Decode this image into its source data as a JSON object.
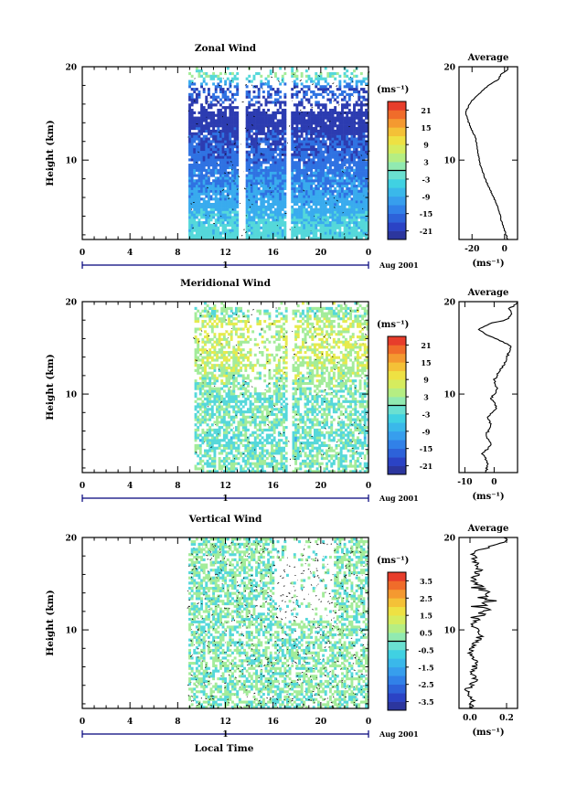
{
  "footer_xlabel": "Local Time",
  "date_label": "Aug 2001",
  "day_label": "1",
  "average_title": "Average",
  "unit_label": "(ms⁻¹)",
  "chart_data": [
    {
      "type": "heatmap",
      "title": "Zonal Wind",
      "ylabel": "Height (km)",
      "ylim": [
        1.5,
        20
      ],
      "yticks": [
        "10",
        "20"
      ],
      "xlim": [
        0,
        24
      ],
      "xticks": [
        "0",
        "4",
        "8",
        "12",
        "16",
        "20",
        "0"
      ],
      "data_x_range": [
        8.9,
        24
      ],
      "colorbar": {
        "unit": "(ms⁻¹)",
        "min": -24,
        "max": 24,
        "ticks": [
          "21",
          "15",
          "9",
          "3",
          "-3",
          "-9",
          "-15",
          "-21"
        ]
      },
      "height_profile": [
        [
          1.5,
          -3
        ],
        [
          3,
          -5
        ],
        [
          5,
          -9
        ],
        [
          8,
          -13
        ],
        [
          10,
          -16
        ],
        [
          12,
          -18
        ],
        [
          14,
          -22
        ],
        [
          15,
          -24
        ],
        [
          16,
          -20
        ],
        [
          17,
          -16
        ],
        [
          17.5,
          -20
        ],
        [
          18.2,
          -8
        ],
        [
          19,
          2
        ],
        [
          19.6,
          -2
        ]
      ],
      "average": {
        "title": "Average",
        "xlim": [
          -28,
          8
        ],
        "xticks": [
          "-20",
          "0"
        ],
        "xlabel": "(ms⁻¹)",
        "profile": [
          [
            1.5,
            2
          ],
          [
            2.5,
            0
          ],
          [
            3.5,
            -2
          ],
          [
            5,
            -4
          ],
          [
            6.5,
            -8
          ],
          [
            8,
            -12
          ],
          [
            9.5,
            -15
          ],
          [
            10.5,
            -16
          ],
          [
            11.5,
            -17
          ],
          [
            12.5,
            -18
          ],
          [
            13.5,
            -21
          ],
          [
            14.5,
            -23
          ],
          [
            15.2,
            -24
          ],
          [
            15.8,
            -22
          ],
          [
            16.4,
            -20
          ],
          [
            17.2,
            -15
          ],
          [
            18,
            -10
          ],
          [
            18.6,
            -4
          ],
          [
            19.2,
            -2
          ],
          [
            19.7,
            2
          ]
        ]
      }
    },
    {
      "type": "heatmap",
      "title": "Meridional Wind",
      "ylabel": "Height (km)",
      "ylim": [
        1.5,
        20
      ],
      "yticks": [
        "10",
        "20"
      ],
      "xlim": [
        0,
        24
      ],
      "xticks": [
        "0",
        "4",
        "8",
        "12",
        "16",
        "20",
        "0"
      ],
      "data_x_range": [
        9.4,
        24
      ],
      "colorbar": {
        "unit": "(ms⁻¹)",
        "min": -24,
        "max": 24,
        "ticks": [
          "21",
          "15",
          "9",
          "3",
          "-3",
          "-9",
          "-15",
          "-21"
        ]
      },
      "height_profile": [
        [
          1.5,
          -1
        ],
        [
          3,
          1
        ],
        [
          5,
          -2
        ],
        [
          7,
          0
        ],
        [
          9,
          -1
        ],
        [
          11,
          2
        ],
        [
          13,
          5
        ],
        [
          15,
          6
        ],
        [
          16.5,
          4
        ],
        [
          17.5,
          7
        ],
        [
          18.5,
          1
        ],
        [
          19.5,
          3
        ]
      ],
      "average": {
        "title": "Average",
        "xlim": [
          -12,
          8
        ],
        "xticks": [
          "-10",
          "0"
        ],
        "xlabel": "(ms⁻¹)",
        "profile": [
          [
            1.5,
            -3
          ],
          [
            2.5,
            -2
          ],
          [
            3.5,
            -4
          ],
          [
            4.5,
            -1
          ],
          [
            5.5,
            -3
          ],
          [
            6.5,
            -1
          ],
          [
            7.5,
            -2
          ],
          [
            8.5,
            1
          ],
          [
            9.5,
            -1
          ],
          [
            10.5,
            1
          ],
          [
            11.5,
            0
          ],
          [
            12.5,
            2
          ],
          [
            13.5,
            4
          ],
          [
            14.5,
            5
          ],
          [
            15.2,
            6
          ],
          [
            15.8,
            2
          ],
          [
            16.5,
            -3
          ],
          [
            17,
            -5
          ],
          [
            17.6,
            -2
          ],
          [
            18,
            4
          ],
          [
            18.6,
            6
          ],
          [
            19.2,
            5
          ],
          [
            19.8,
            8
          ]
        ]
      }
    },
    {
      "type": "heatmap",
      "title": "Vertical Wind",
      "ylabel": "Height (km)",
      "ylim": [
        1.5,
        20
      ],
      "yticks": [
        "10",
        "20"
      ],
      "xlim": [
        0,
        24
      ],
      "xticks": [
        "0",
        "4",
        "8",
        "12",
        "16",
        "20",
        "0"
      ],
      "data_x_range": [
        8.9,
        24
      ],
      "colorbar": {
        "unit": "(ms⁻¹)",
        "min": -4,
        "max": 4,
        "ticks": [
          "3.5",
          "2.5",
          "1.5",
          "0.5",
          "-0.5",
          "-1.5",
          "-2.5",
          "-3.5"
        ]
      },
      "height_profile": [
        [
          1.5,
          0.2
        ],
        [
          5,
          0
        ],
        [
          10,
          0.1
        ],
        [
          15,
          0.3
        ],
        [
          20,
          0.2
        ]
      ],
      "average": {
        "title": "Average",
        "xlim": [
          -0.06,
          0.26
        ],
        "xticks": [
          "0.0",
          "0.2"
        ],
        "xlabel": "(ms⁻¹)",
        "profile": [
          [
            1.5,
            0
          ],
          [
            2.5,
            0.02
          ],
          [
            3.5,
            -0.02
          ],
          [
            4.5,
            0.03
          ],
          [
            5.5,
            0.01
          ],
          [
            6.5,
            0.04
          ],
          [
            7.5,
            0
          ],
          [
            8.5,
            0.03
          ],
          [
            9.5,
            0.06
          ],
          [
            10.5,
            0.02
          ],
          [
            11.5,
            0.05
          ],
          [
            12,
            0.1
          ],
          [
            12.5,
            0.04
          ],
          [
            13,
            0.12
          ],
          [
            13.5,
            0.06
          ],
          [
            14,
            0.1
          ],
          [
            14.5,
            0.04
          ],
          [
            15.5,
            0.02
          ],
          [
            16.5,
            0.05
          ],
          [
            17.5,
            0.03
          ],
          [
            18.5,
            0.02
          ],
          [
            19.5,
            0.2
          ]
        ]
      }
    }
  ]
}
